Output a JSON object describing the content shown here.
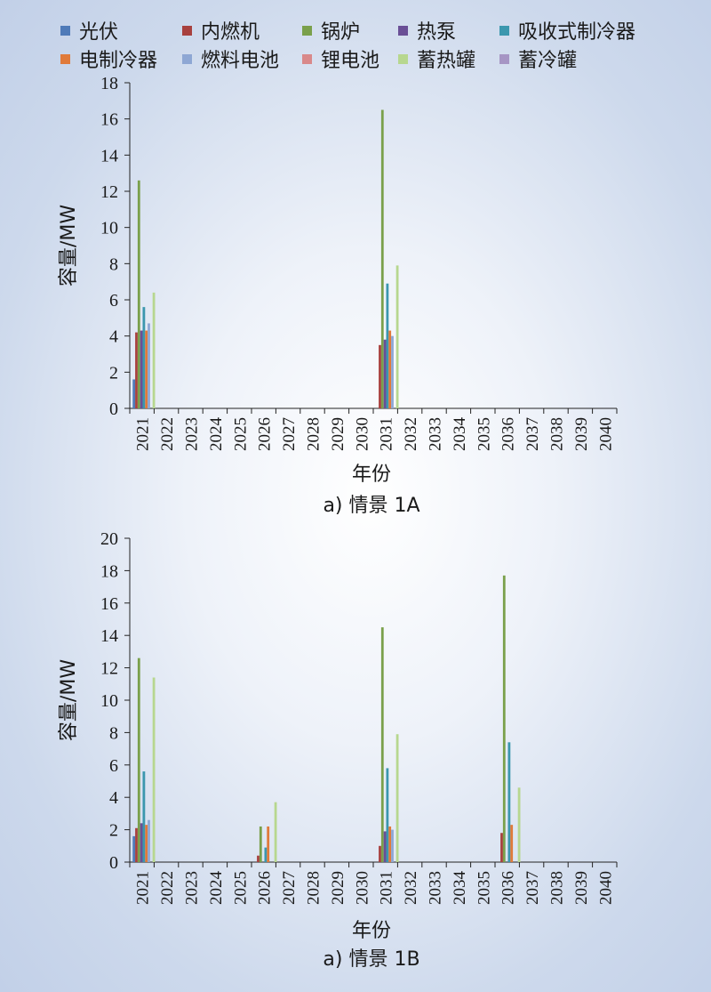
{
  "legend": {
    "items": [
      {
        "label": "光伏",
        "color": "#4f7ab8"
      },
      {
        "label": "内燃机",
        "color": "#a8403e"
      },
      {
        "label": "锅炉",
        "color": "#7aa04b"
      },
      {
        "label": "热泵",
        "color": "#6a4f96"
      },
      {
        "label": "吸收式制冷器",
        "color": "#3b97ae"
      },
      {
        "label": "电制冷器",
        "color": "#e07a3a"
      },
      {
        "label": "燃料电池",
        "color": "#8ea7d4"
      },
      {
        "label": "锂电池",
        "color": "#d9898a"
      },
      {
        "label": "蓄热罐",
        "color": "#b7d78f"
      },
      {
        "label": "蓄冷罐",
        "color": "#a695c4"
      }
    ]
  },
  "chart_data": [
    {
      "type": "bar",
      "title": "",
      "caption": "a) 情景 1A",
      "xlabel": "年份",
      "ylabel": "容量/MW",
      "ylim": [
        0,
        18
      ],
      "yticks": [
        0,
        2,
        4,
        6,
        8,
        10,
        12,
        14,
        16,
        18
      ],
      "categories": [
        "2021",
        "2022",
        "2023",
        "2024",
        "2025",
        "2026",
        "2027",
        "2028",
        "2029",
        "2030",
        "2031",
        "2032",
        "2033",
        "2034",
        "2035",
        "2036",
        "2037",
        "2038",
        "2039",
        "2040"
      ],
      "series": [
        {
          "name": "光伏",
          "values": [
            1.6,
            0,
            0,
            0,
            0,
            0,
            0,
            0,
            0,
            0,
            0,
            0,
            0,
            0,
            0,
            0,
            0,
            0,
            0,
            0
          ]
        },
        {
          "name": "内燃机",
          "values": [
            4.2,
            0,
            0,
            0,
            0,
            0,
            0,
            0,
            0,
            0,
            3.5,
            0,
            0,
            0,
            0,
            0,
            0,
            0,
            0,
            0
          ]
        },
        {
          "name": "锅炉",
          "values": [
            12.6,
            0,
            0,
            0,
            0,
            0,
            0,
            0,
            0,
            0,
            16.5,
            0,
            0,
            0,
            0,
            0,
            0,
            0,
            0,
            0
          ]
        },
        {
          "name": "热泵",
          "values": [
            4.3,
            0,
            0,
            0,
            0,
            0,
            0,
            0,
            0,
            0,
            3.8,
            0,
            0,
            0,
            0,
            0,
            0,
            0,
            0,
            0
          ]
        },
        {
          "name": "吸收式制冷器",
          "values": [
            5.6,
            0,
            0,
            0,
            0,
            0,
            0,
            0,
            0,
            0,
            6.9,
            0,
            0,
            0,
            0,
            0,
            0,
            0,
            0,
            0
          ]
        },
        {
          "name": "电制冷器",
          "values": [
            4.3,
            0,
            0,
            0,
            0,
            0,
            0,
            0,
            0,
            0,
            4.3,
            0,
            0,
            0,
            0,
            0,
            0,
            0,
            0,
            0
          ]
        },
        {
          "name": "燃料电池",
          "values": [
            4.7,
            0,
            0,
            0,
            0,
            0,
            0,
            0,
            0,
            0,
            4.0,
            0,
            0,
            0,
            0,
            0,
            0,
            0,
            0,
            0
          ]
        },
        {
          "name": "锂电池",
          "values": [
            0,
            0,
            0,
            0,
            0,
            0,
            0,
            0,
            0,
            0,
            0,
            0,
            0,
            0,
            0,
            0,
            0,
            0,
            0,
            0
          ]
        },
        {
          "name": "蓄热罐",
          "values": [
            6.4,
            0,
            0,
            0,
            0,
            0,
            0,
            0,
            0,
            0,
            7.9,
            0,
            0,
            0,
            0,
            0,
            0,
            0,
            0,
            0
          ]
        },
        {
          "name": "蓄冷罐",
          "values": [
            0,
            0,
            0,
            0,
            0,
            0,
            0,
            0,
            0,
            0,
            0,
            0,
            0,
            0,
            0,
            0,
            0,
            0,
            0,
            0
          ]
        }
      ]
    },
    {
      "type": "bar",
      "title": "",
      "caption": "a) 情景 1B",
      "xlabel": "年份",
      "ylabel": "容量/MW",
      "ylim": [
        0,
        20
      ],
      "yticks": [
        0,
        2,
        4,
        6,
        8,
        10,
        12,
        14,
        16,
        18,
        20
      ],
      "categories": [
        "2021",
        "2022",
        "2023",
        "2024",
        "2025",
        "2026",
        "2027",
        "2028",
        "2029",
        "2030",
        "2031",
        "2032",
        "2033",
        "2034",
        "2035",
        "2036",
        "2037",
        "2038",
        "2039",
        "2040"
      ],
      "series": [
        {
          "name": "光伏",
          "values": [
            1.6,
            0,
            0,
            0,
            0,
            0,
            0,
            0,
            0,
            0,
            0,
            0,
            0,
            0,
            0,
            0,
            0,
            0,
            0,
            0
          ]
        },
        {
          "name": "内燃机",
          "values": [
            2.1,
            0,
            0,
            0,
            0,
            0.4,
            0,
            0,
            0,
            0,
            1.0,
            0,
            0,
            0,
            0,
            1.8,
            0,
            0,
            0,
            0
          ]
        },
        {
          "name": "锅炉",
          "values": [
            12.6,
            0,
            0,
            0,
            0,
            2.2,
            0,
            0,
            0,
            0,
            14.5,
            0,
            0,
            0,
            0,
            17.7,
            0,
            0,
            0,
            0
          ]
        },
        {
          "name": "热泵",
          "values": [
            2.4,
            0,
            0,
            0,
            0,
            0,
            0,
            0,
            0,
            0,
            1.9,
            0,
            0,
            0,
            0,
            0,
            0,
            0,
            0,
            0
          ]
        },
        {
          "name": "吸收式制冷器",
          "values": [
            5.6,
            0,
            0,
            0,
            0,
            0.9,
            0,
            0,
            0,
            0,
            5.8,
            0,
            0,
            0,
            0,
            7.4,
            0,
            0,
            0,
            0
          ]
        },
        {
          "name": "电制冷器",
          "values": [
            2.3,
            0,
            0,
            0,
            0,
            2.2,
            0,
            0,
            0,
            0,
            2.2,
            0,
            0,
            0,
            0,
            2.3,
            0,
            0,
            0,
            0
          ]
        },
        {
          "name": "燃料电池",
          "values": [
            2.6,
            0,
            0,
            0,
            0,
            0,
            0,
            0,
            0,
            0,
            2.0,
            0,
            0,
            0,
            0,
            0,
            0,
            0,
            0,
            0
          ]
        },
        {
          "name": "锂电池",
          "values": [
            0,
            0,
            0,
            0,
            0,
            0,
            0,
            0,
            0,
            0,
            0,
            0,
            0,
            0,
            0,
            0,
            0,
            0,
            0,
            0
          ]
        },
        {
          "name": "蓄热罐",
          "values": [
            11.4,
            0,
            0,
            0,
            0,
            3.7,
            0,
            0,
            0,
            0,
            7.9,
            0,
            0,
            0,
            0,
            4.6,
            0,
            0,
            0,
            0
          ]
        },
        {
          "name": "蓄冷罐",
          "values": [
            0,
            0,
            0,
            0,
            0,
            0,
            0,
            0,
            0,
            0,
            0,
            0,
            0,
            0,
            0,
            0,
            0,
            0,
            0,
            0
          ]
        }
      ]
    }
  ]
}
